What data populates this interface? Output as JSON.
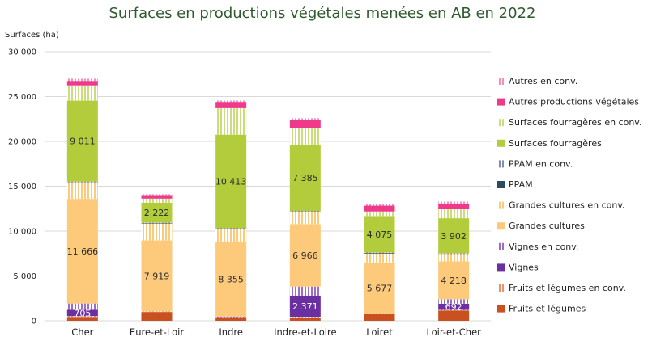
{
  "chart_data": {
    "type": "bar",
    "stacked": true,
    "title": "Surfaces en productions végétales menées en AB en 2022",
    "ylabel": "Surfaces (ha)",
    "ylim": [
      0,
      30000
    ],
    "yticks": [
      0,
      5000,
      10000,
      15000,
      20000,
      25000,
      30000
    ],
    "ytick_labels": [
      "0",
      "5 000",
      "10 000",
      "15 000",
      "20 000",
      "25 000",
      "30 000"
    ],
    "grid": true,
    "legend_position": "right",
    "categories": [
      "Cher",
      "Eure-et-Loir",
      "Indre",
      "Indre-et-Loire",
      "Loiret",
      "Loir-et-Cher"
    ],
    "series": [
      {
        "name": "Fruits et légumes",
        "color": "#c9511f",
        "pattern": false,
        "values": [
          430,
          980,
          280,
          320,
          720,
          1150
        ],
        "labels": [
          "",
          "",
          "",
          "",
          "",
          ""
        ]
      },
      {
        "name": "Fruits et légumes en conv.",
        "color": "#e8926a",
        "pattern": true,
        "values": [
          90,
          60,
          120,
          120,
          80,
          60
        ],
        "labels": [
          "",
          "",
          "",
          "",
          "",
          ""
        ]
      },
      {
        "name": "Vignes",
        "color": "#6a2fa0",
        "pattern": false,
        "values": [
          705,
          0,
          20,
          2371,
          20,
          692
        ],
        "labels": [
          "705",
          "",
          "",
          "2 371",
          "",
          "692"
        ]
      },
      {
        "name": "Vignes en conv.",
        "color": "#9b6cc8",
        "pattern": true,
        "values": [
          700,
          0,
          40,
          1000,
          10,
          500
        ],
        "labels": [
          "",
          "",
          "",
          "",
          "",
          ""
        ]
      },
      {
        "name": "Grandes cultures",
        "color": "#fdc97a",
        "pattern": false,
        "values": [
          11666,
          7919,
          8355,
          6966,
          5677,
          4218
        ],
        "labels": [
          "11 666",
          "7 919",
          "8 355",
          "6 966",
          "5 677",
          "4 218"
        ]
      },
      {
        "name": "Grandes cultures en conv.",
        "color": "#fdc97a",
        "pattern": true,
        "values": [
          1890,
          1890,
          1485,
          1423,
          993,
          860
        ],
        "labels": [
          "",
          "",
          "",
          "",
          "",
          ""
        ]
      },
      {
        "name": "PPAM",
        "color": "#2e4a5e",
        "pattern": false,
        "values": [
          30,
          60,
          20,
          20,
          80,
          30
        ],
        "labels": [
          "",
          "",
          "",
          "",
          "",
          ""
        ]
      },
      {
        "name": "PPAM en conv.",
        "color": "#7f8db0",
        "pattern": true,
        "values": [
          20,
          40,
          20,
          20,
          30,
          20
        ],
        "labels": [
          "",
          "",
          "",
          "",
          "",
          ""
        ]
      },
      {
        "name": "Surfaces fourragères",
        "color": "#b3cc3b",
        "pattern": false,
        "values": [
          9011,
          2222,
          10413,
          7385,
          4075,
          3902
        ],
        "labels": [
          "9 011",
          "2 222",
          "10 413",
          "7 385",
          "4 075",
          "3 902"
        ]
      },
      {
        "name": "Surfaces fourragères en conv.",
        "color": "#cbdc7c",
        "pattern": true,
        "values": [
          1700,
          450,
          2950,
          1900,
          500,
          1000
        ],
        "labels": [
          "",
          "",
          "",
          "",
          "",
          ""
        ]
      },
      {
        "name": "Autres productions végétales",
        "color": "#ef3a8c",
        "pattern": false,
        "values": [
          500,
          400,
          700,
          850,
          650,
          650
        ],
        "labels": [
          "",
          "",
          "",
          "",
          "",
          ""
        ]
      },
      {
        "name": "Autres en conv.",
        "color": "#f58fbd",
        "pattern": true,
        "values": [
          250,
          90,
          150,
          210,
          165,
          210
        ],
        "labels": [
          "",
          "",
          "",
          "",
          "",
          ""
        ]
      }
    ],
    "legend_order": [
      "Autres en conv.",
      "Autres productions végétales",
      "Surfaces fourragères en conv.",
      "Surfaces fourragères",
      "PPAM en conv.",
      "PPAM",
      "Grandes cultures en conv.",
      "Grandes cultures",
      "Vignes en conv.",
      "Vignes",
      "Fruits et légumes en conv.",
      "Fruits et légumes"
    ]
  }
}
